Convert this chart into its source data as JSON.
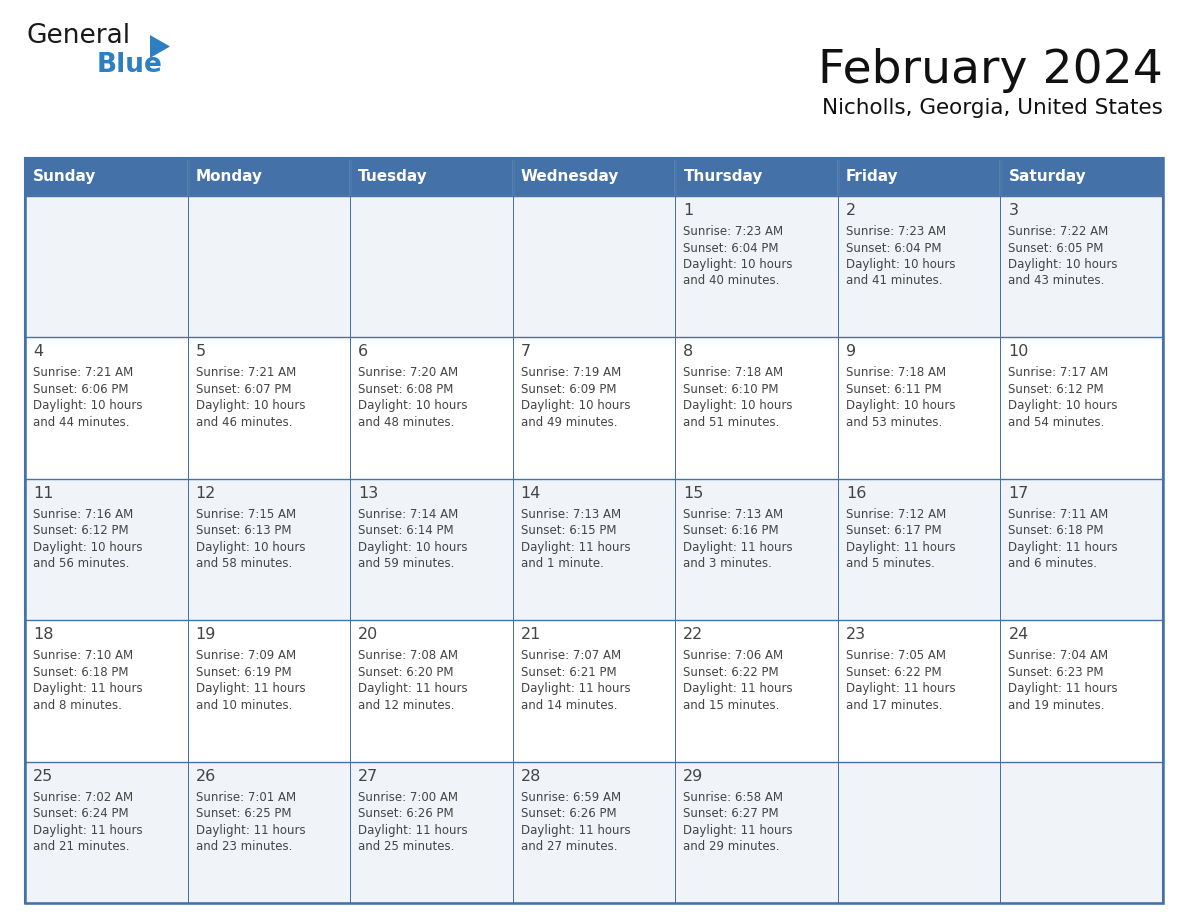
{
  "title": "February 2024",
  "subtitle": "Nicholls, Georgia, United States",
  "header_color": "#4472a8",
  "header_text_color": "#ffffff",
  "cell_bg_even": "#f0f4f8",
  "cell_bg_odd": "#ffffff",
  "grid_color": "#4472a8",
  "text_color": "#444444",
  "day_headers": [
    "Sunday",
    "Monday",
    "Tuesday",
    "Wednesday",
    "Thursday",
    "Friday",
    "Saturday"
  ],
  "logo_text1": "General",
  "logo_text2": "Blue",
  "logo_color1": "#1a1a1a",
  "logo_color2": "#2e7fc2",
  "days": [
    {
      "row": 0,
      "col": 0,
      "num": "",
      "lines": []
    },
    {
      "row": 0,
      "col": 1,
      "num": "",
      "lines": []
    },
    {
      "row": 0,
      "col": 2,
      "num": "",
      "lines": []
    },
    {
      "row": 0,
      "col": 3,
      "num": "",
      "lines": []
    },
    {
      "row": 0,
      "col": 4,
      "num": "1",
      "lines": [
        "Sunrise: 7:23 AM",
        "Sunset: 6:04 PM",
        "Daylight: 10 hours",
        "and 40 minutes."
      ]
    },
    {
      "row": 0,
      "col": 5,
      "num": "2",
      "lines": [
        "Sunrise: 7:23 AM",
        "Sunset: 6:04 PM",
        "Daylight: 10 hours",
        "and 41 minutes."
      ]
    },
    {
      "row": 0,
      "col": 6,
      "num": "3",
      "lines": [
        "Sunrise: 7:22 AM",
        "Sunset: 6:05 PM",
        "Daylight: 10 hours",
        "and 43 minutes."
      ]
    },
    {
      "row": 1,
      "col": 0,
      "num": "4",
      "lines": [
        "Sunrise: 7:21 AM",
        "Sunset: 6:06 PM",
        "Daylight: 10 hours",
        "and 44 minutes."
      ]
    },
    {
      "row": 1,
      "col": 1,
      "num": "5",
      "lines": [
        "Sunrise: 7:21 AM",
        "Sunset: 6:07 PM",
        "Daylight: 10 hours",
        "and 46 minutes."
      ]
    },
    {
      "row": 1,
      "col": 2,
      "num": "6",
      "lines": [
        "Sunrise: 7:20 AM",
        "Sunset: 6:08 PM",
        "Daylight: 10 hours",
        "and 48 minutes."
      ]
    },
    {
      "row": 1,
      "col": 3,
      "num": "7",
      "lines": [
        "Sunrise: 7:19 AM",
        "Sunset: 6:09 PM",
        "Daylight: 10 hours",
        "and 49 minutes."
      ]
    },
    {
      "row": 1,
      "col": 4,
      "num": "8",
      "lines": [
        "Sunrise: 7:18 AM",
        "Sunset: 6:10 PM",
        "Daylight: 10 hours",
        "and 51 minutes."
      ]
    },
    {
      "row": 1,
      "col": 5,
      "num": "9",
      "lines": [
        "Sunrise: 7:18 AM",
        "Sunset: 6:11 PM",
        "Daylight: 10 hours",
        "and 53 minutes."
      ]
    },
    {
      "row": 1,
      "col": 6,
      "num": "10",
      "lines": [
        "Sunrise: 7:17 AM",
        "Sunset: 6:12 PM",
        "Daylight: 10 hours",
        "and 54 minutes."
      ]
    },
    {
      "row": 2,
      "col": 0,
      "num": "11",
      "lines": [
        "Sunrise: 7:16 AM",
        "Sunset: 6:12 PM",
        "Daylight: 10 hours",
        "and 56 minutes."
      ]
    },
    {
      "row": 2,
      "col": 1,
      "num": "12",
      "lines": [
        "Sunrise: 7:15 AM",
        "Sunset: 6:13 PM",
        "Daylight: 10 hours",
        "and 58 minutes."
      ]
    },
    {
      "row": 2,
      "col": 2,
      "num": "13",
      "lines": [
        "Sunrise: 7:14 AM",
        "Sunset: 6:14 PM",
        "Daylight: 10 hours",
        "and 59 minutes."
      ]
    },
    {
      "row": 2,
      "col": 3,
      "num": "14",
      "lines": [
        "Sunrise: 7:13 AM",
        "Sunset: 6:15 PM",
        "Daylight: 11 hours",
        "and 1 minute."
      ]
    },
    {
      "row": 2,
      "col": 4,
      "num": "15",
      "lines": [
        "Sunrise: 7:13 AM",
        "Sunset: 6:16 PM",
        "Daylight: 11 hours",
        "and 3 minutes."
      ]
    },
    {
      "row": 2,
      "col": 5,
      "num": "16",
      "lines": [
        "Sunrise: 7:12 AM",
        "Sunset: 6:17 PM",
        "Daylight: 11 hours",
        "and 5 minutes."
      ]
    },
    {
      "row": 2,
      "col": 6,
      "num": "17",
      "lines": [
        "Sunrise: 7:11 AM",
        "Sunset: 6:18 PM",
        "Daylight: 11 hours",
        "and 6 minutes."
      ]
    },
    {
      "row": 3,
      "col": 0,
      "num": "18",
      "lines": [
        "Sunrise: 7:10 AM",
        "Sunset: 6:18 PM",
        "Daylight: 11 hours",
        "and 8 minutes."
      ]
    },
    {
      "row": 3,
      "col": 1,
      "num": "19",
      "lines": [
        "Sunrise: 7:09 AM",
        "Sunset: 6:19 PM",
        "Daylight: 11 hours",
        "and 10 minutes."
      ]
    },
    {
      "row": 3,
      "col": 2,
      "num": "20",
      "lines": [
        "Sunrise: 7:08 AM",
        "Sunset: 6:20 PM",
        "Daylight: 11 hours",
        "and 12 minutes."
      ]
    },
    {
      "row": 3,
      "col": 3,
      "num": "21",
      "lines": [
        "Sunrise: 7:07 AM",
        "Sunset: 6:21 PM",
        "Daylight: 11 hours",
        "and 14 minutes."
      ]
    },
    {
      "row": 3,
      "col": 4,
      "num": "22",
      "lines": [
        "Sunrise: 7:06 AM",
        "Sunset: 6:22 PM",
        "Daylight: 11 hours",
        "and 15 minutes."
      ]
    },
    {
      "row": 3,
      "col": 5,
      "num": "23",
      "lines": [
        "Sunrise: 7:05 AM",
        "Sunset: 6:22 PM",
        "Daylight: 11 hours",
        "and 17 minutes."
      ]
    },
    {
      "row": 3,
      "col": 6,
      "num": "24",
      "lines": [
        "Sunrise: 7:04 AM",
        "Sunset: 6:23 PM",
        "Daylight: 11 hours",
        "and 19 minutes."
      ]
    },
    {
      "row": 4,
      "col": 0,
      "num": "25",
      "lines": [
        "Sunrise: 7:02 AM",
        "Sunset: 6:24 PM",
        "Daylight: 11 hours",
        "and 21 minutes."
      ]
    },
    {
      "row": 4,
      "col": 1,
      "num": "26",
      "lines": [
        "Sunrise: 7:01 AM",
        "Sunset: 6:25 PM",
        "Daylight: 11 hours",
        "and 23 minutes."
      ]
    },
    {
      "row": 4,
      "col": 2,
      "num": "27",
      "lines": [
        "Sunrise: 7:00 AM",
        "Sunset: 6:26 PM",
        "Daylight: 11 hours",
        "and 25 minutes."
      ]
    },
    {
      "row": 4,
      "col": 3,
      "num": "28",
      "lines": [
        "Sunrise: 6:59 AM",
        "Sunset: 6:26 PM",
        "Daylight: 11 hours",
        "and 27 minutes."
      ]
    },
    {
      "row": 4,
      "col": 4,
      "num": "29",
      "lines": [
        "Sunrise: 6:58 AM",
        "Sunset: 6:27 PM",
        "Daylight: 11 hours",
        "and 29 minutes."
      ]
    },
    {
      "row": 4,
      "col": 5,
      "num": "",
      "lines": []
    },
    {
      "row": 4,
      "col": 6,
      "num": "",
      "lines": []
    }
  ]
}
